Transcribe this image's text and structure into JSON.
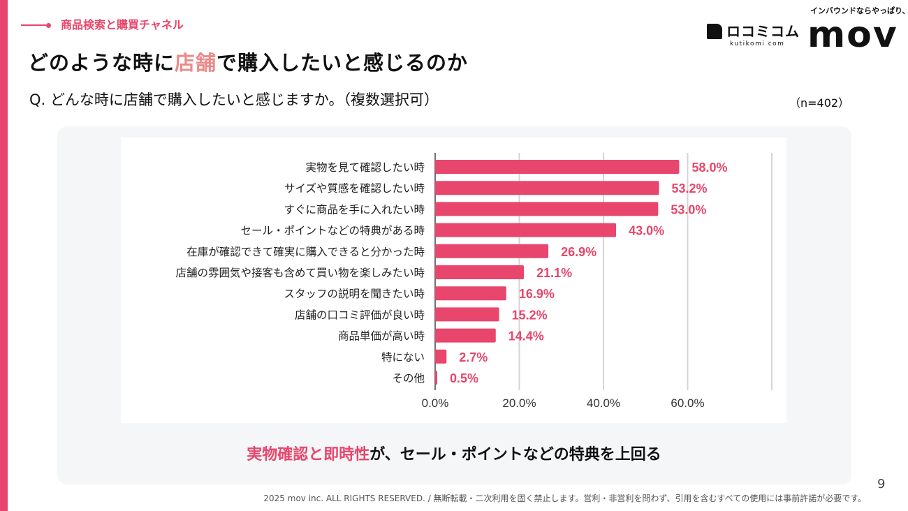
{
  "section_label": "商品検索と購買チャネル",
  "title": {
    "before": "どのような時に",
    "highlight": "店舗",
    "after": "で購入したいと感じるのか"
  },
  "question": "Q. どんな時に店舗で購入したいと感じますか。（複数選択可）",
  "sample_size": "（n=402）",
  "logos": {
    "kutikomi_kana": "ロコミコム",
    "kutikomi_sub": "kutikomi com",
    "mov_tagline": "インバウンドならやっぱり、",
    "mov": "mov"
  },
  "summary": {
    "highlight": "実物確認と即時性",
    "rest": "が、セール・ポイントなどの特典を上回る"
  },
  "footer": "2025 mov inc. ALL RIGHTS RESERVED. / 無断転載・二次利用を固く禁止します。営利・非営利を問わず、引用を含むすべての使用には事前許諾が必要です。",
  "page_number": "9",
  "colors": {
    "accent": "#e8466c",
    "bar": "#e8466c"
  },
  "chart_data": {
    "type": "bar",
    "orientation": "horizontal",
    "categories": [
      "実物を見て確認したい時",
      "サイズや質感を確認したい時",
      "すぐに商品を手に入れたい時",
      "セール・ポイントなどの特典がある時",
      "在庫が確認できて確実に購入できると分かった時",
      "店舗の雰囲気や接客も含めて買い物を楽しみたい時",
      "スタッフの説明を聞きたい時",
      "店舗の口コミ評価が良い時",
      "商品単価が高い時",
      "特にない",
      "その他"
    ],
    "values": [
      58.0,
      53.2,
      53.0,
      43.0,
      26.9,
      21.1,
      16.9,
      15.2,
      14.4,
      2.7,
      0.5
    ],
    "data_labels": [
      "58.0%",
      "53.2%",
      "53.0%",
      "43.0%",
      "26.9%",
      "21.1%",
      "16.9%",
      "15.2%",
      "14.4%",
      "2.7%",
      "0.5%"
    ],
    "xlim": [
      0,
      80
    ],
    "xticks": [
      0,
      20,
      40,
      60,
      80
    ],
    "xtick_labels": [
      "0.0%",
      "20.0%",
      "40.0%",
      "60.0%",
      ""
    ],
    "grid": true
  }
}
